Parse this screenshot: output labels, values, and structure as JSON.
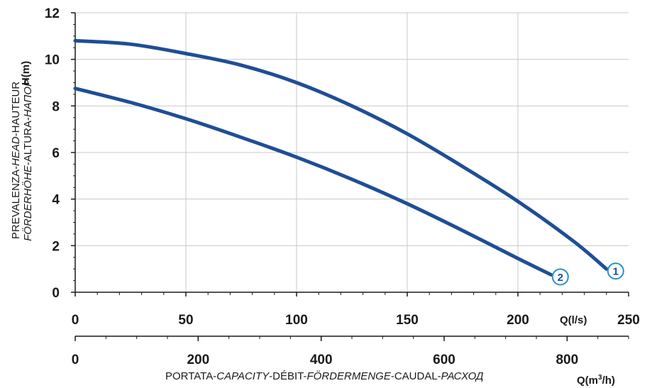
{
  "chart_data": {
    "type": "line",
    "y_axis": {
      "unit": "H(m)",
      "label_line1": [
        "PREVALENZA-",
        "HEAD",
        "-HAUTEUR"
      ],
      "label_line2": [
        "FÖRDERHÖHE",
        "-ALTURA-",
        "НАПОР"
      ],
      "ticks": [
        "0",
        "2",
        "4",
        "6",
        "8",
        "10",
        "12"
      ],
      "ylim": [
        0,
        12
      ]
    },
    "x_axis_ls": {
      "unit": "Q(l/s)",
      "ticks": [
        "0",
        "50",
        "100",
        "150",
        "200",
        "250"
      ],
      "xlim": [
        0,
        250
      ]
    },
    "x_axis_m3h": {
      "unit_base": "Q(m",
      "unit_sup": "3",
      "unit_tail": "/h)",
      "ticks": [
        "0",
        "200",
        "400",
        "600",
        "800"
      ],
      "label": [
        "PORTATA-",
        "CAPACITY",
        "-DÉBIT-",
        "FÖRDERMENGE",
        "-CAUDAL-",
        "РАСХОД"
      ]
    },
    "grid": true,
    "series": [
      {
        "name": "1",
        "color": "#1f4e96",
        "x": [
          0,
          25,
          50,
          75,
          100,
          125,
          150,
          175,
          200,
          225,
          240
        ],
        "y": [
          10.8,
          10.65,
          10.25,
          9.75,
          9.0,
          8.0,
          6.8,
          5.4,
          3.9,
          2.2,
          1.0
        ]
      },
      {
        "name": "2",
        "color": "#1f4e96",
        "x": [
          0,
          25,
          50,
          75,
          100,
          125,
          150,
          175,
          200,
          215
        ],
        "y": [
          8.75,
          8.15,
          7.45,
          6.65,
          5.8,
          4.85,
          3.8,
          2.65,
          1.45,
          0.75
        ]
      }
    ]
  }
}
